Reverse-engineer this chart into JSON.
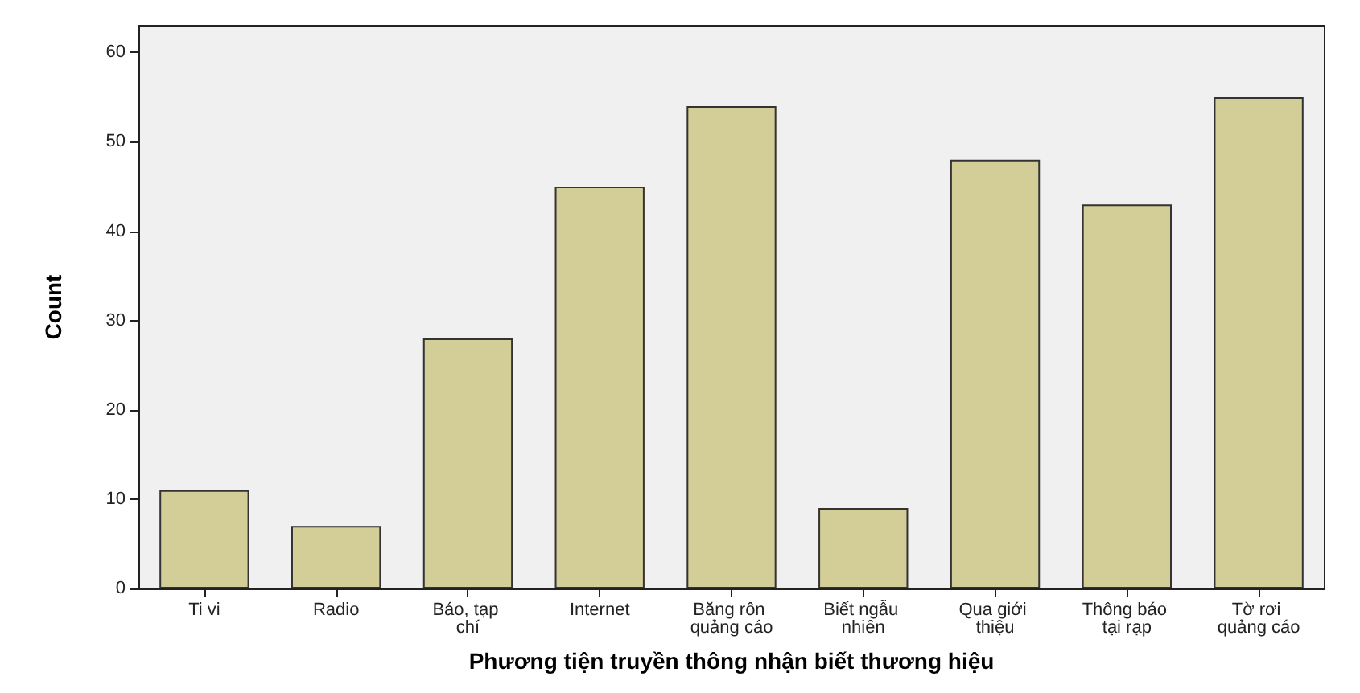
{
  "chart_data": {
    "type": "bar",
    "xlabel": "Phương tiện truyền thông nhận biết thương hiệu",
    "ylabel": "Count",
    "categories": [
      "Ti vi",
      "Radio",
      "Báo, tạp chí",
      "Internet",
      "Băng rôn quảng cáo",
      "Biết ngẫu nhiên",
      "Qua giới thiệu",
      "Thông báo tại rạp",
      "Tờ rơi quảng cáo"
    ],
    "values": [
      11,
      7,
      28,
      45,
      54,
      9,
      48,
      43,
      55
    ],
    "color": "#d3ce97",
    "ylim": [
      0,
      63
    ],
    "yticks": [
      0,
      10,
      20,
      30,
      40,
      50,
      60
    ],
    "grid": false
  }
}
